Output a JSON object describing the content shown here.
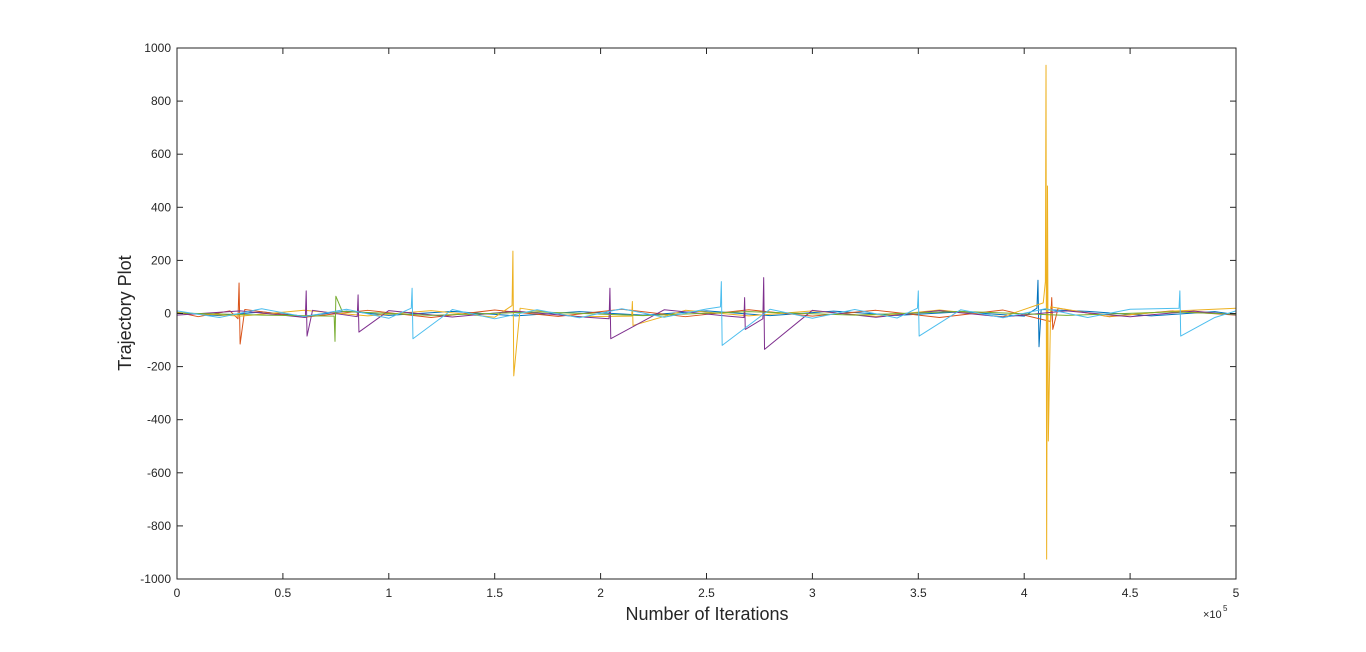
{
  "chart_data": {
    "type": "line",
    "xlabel": "Number of Iterations",
    "ylabel": "Trajectory Plot",
    "x_multiplier": "×10",
    "x_multiplier_exponent": "5",
    "xlim": [
      0,
      500000
    ],
    "ylim": [
      -1000,
      1000
    ],
    "xticks": [
      0,
      {
        "value": 50000,
        "label": "0.5"
      },
      {
        "value": 100000,
        "label": "1"
      },
      {
        "value": 150000,
        "label": "1.5"
      },
      {
        "value": 200000,
        "label": "2"
      },
      {
        "value": 250000,
        "label": "2.5"
      },
      {
        "value": 300000,
        "label": "3"
      },
      {
        "value": 350000,
        "label": "3.5"
      },
      {
        "value": 400000,
        "label": "4"
      },
      {
        "value": 450000,
        "label": "4.5"
      },
      {
        "value": 500000,
        "label": "5"
      }
    ],
    "yticks": [
      -1000,
      -800,
      -600,
      -400,
      -200,
      0,
      200,
      400,
      600,
      800,
      1000
    ],
    "grid": false,
    "series": [
      {
        "color": "#0072BD",
        "x": [
          0,
          20000,
          40000,
          60000,
          80000,
          100000,
          130000,
          160000,
          190000,
          220000,
          250000,
          280000,
          310000,
          340000,
          370000,
          400000,
          406000,
          406500,
          407000,
          408000,
          430000,
          460000,
          490000,
          500000
        ],
        "values": [
          3,
          -8,
          6,
          -10,
          9,
          -7,
          8,
          -9,
          7,
          -6,
          10,
          -8,
          9,
          -7,
          6,
          -10,
          20,
          125,
          -125,
          15,
          8,
          -9,
          7,
          -4
        ]
      },
      {
        "color": "#D95319",
        "x": [
          0,
          10000,
          25000,
          28800,
          29300,
          29800,
          32000,
          60000,
          90000,
          120000,
          150000,
          180000,
          210000,
          240000,
          270000,
          300000,
          330000,
          360000,
          390000,
          412500,
          413000,
          413500,
          416000,
          440000,
          470000,
          500000
        ],
        "values": [
          5,
          -12,
          10,
          -20,
          115,
          -115,
          15,
          -14,
          12,
          -15,
          13,
          -11,
          16,
          -12,
          14,
          -10,
          12,
          -15,
          13,
          -30,
          60,
          -60,
          20,
          -12,
          10,
          -6
        ]
      },
      {
        "color": "#EDB120",
        "x": [
          0,
          30000,
          60000,
          90000,
          120000,
          150000,
          158200,
          158600,
          159000,
          162000,
          190000,
          214700,
          215000,
          215300,
          240000,
          270000,
          300000,
          330000,
          360000,
          390000,
          409000,
          410000,
          410300,
          410600,
          411000,
          411400,
          412500,
          440000,
          470000,
          500000
        ],
        "values": [
          4,
          -10,
          12,
          -9,
          11,
          -14,
          30,
          235,
          -235,
          20,
          -12,
          -10,
          45,
          -45,
          12,
          -9,
          10,
          -11,
          13,
          -12,
          40,
          120,
          935,
          -925,
          480,
          -480,
          25,
          -11,
          9,
          20
        ]
      },
      {
        "color": "#7E2F8E",
        "x": [
          0,
          30000,
          60600,
          61000,
          61400,
          64000,
          85100,
          85500,
          85900,
          100000,
          130000,
          160000,
          190000,
          204000,
          204400,
          204800,
          230000,
          260000,
          267700,
          268000,
          268300,
          276600,
          277000,
          277400,
          300000,
          330000,
          360000,
          390000,
          420000,
          450000,
          480000,
          500000
        ],
        "values": [
          -6,
          10,
          -15,
          85,
          -85,
          12,
          -12,
          70,
          -70,
          11,
          -13,
          9,
          -12,
          -20,
          95,
          -95,
          14,
          -10,
          -15,
          60,
          -60,
          -20,
          135,
          -135,
          12,
          -14,
          11,
          -13,
          10,
          -12,
          9,
          -5
        ]
      },
      {
        "color": "#77AC30",
        "x": [
          0,
          40000,
          74200,
          74600,
          75000,
          78000,
          120000,
          170000,
          220000,
          270000,
          320000,
          370000,
          420000,
          470000,
          500000
        ],
        "values": [
          2,
          -6,
          -10,
          -105,
          65,
          8,
          -7,
          6,
          -8,
          7,
          -6,
          8,
          -7,
          6,
          -3
        ]
      },
      {
        "color": "#4DBEEE",
        "x": [
          0,
          20000,
          40000,
          60000,
          80000,
          100000,
          110600,
          111000,
          111400,
          130000,
          150000,
          170000,
          190000,
          210000,
          230000,
          250000,
          256600,
          257000,
          257400,
          280000,
          300000,
          320000,
          340000,
          349600,
          350000,
          350400,
          370000,
          390000,
          410000,
          430000,
          450000,
          473100,
          473500,
          473900,
          490000,
          500000
        ],
        "values": [
          10,
          -15,
          18,
          -12,
          16,
          -18,
          20,
          95,
          -95,
          15,
          -20,
          14,
          -16,
          18,
          -14,
          17,
          25,
          120,
          -120,
          16,
          -18,
          15,
          -17,
          20,
          85,
          -85,
          14,
          -16,
          18,
          -15,
          16,
          20,
          85,
          -85,
          -15,
          10
        ]
      }
    ]
  }
}
